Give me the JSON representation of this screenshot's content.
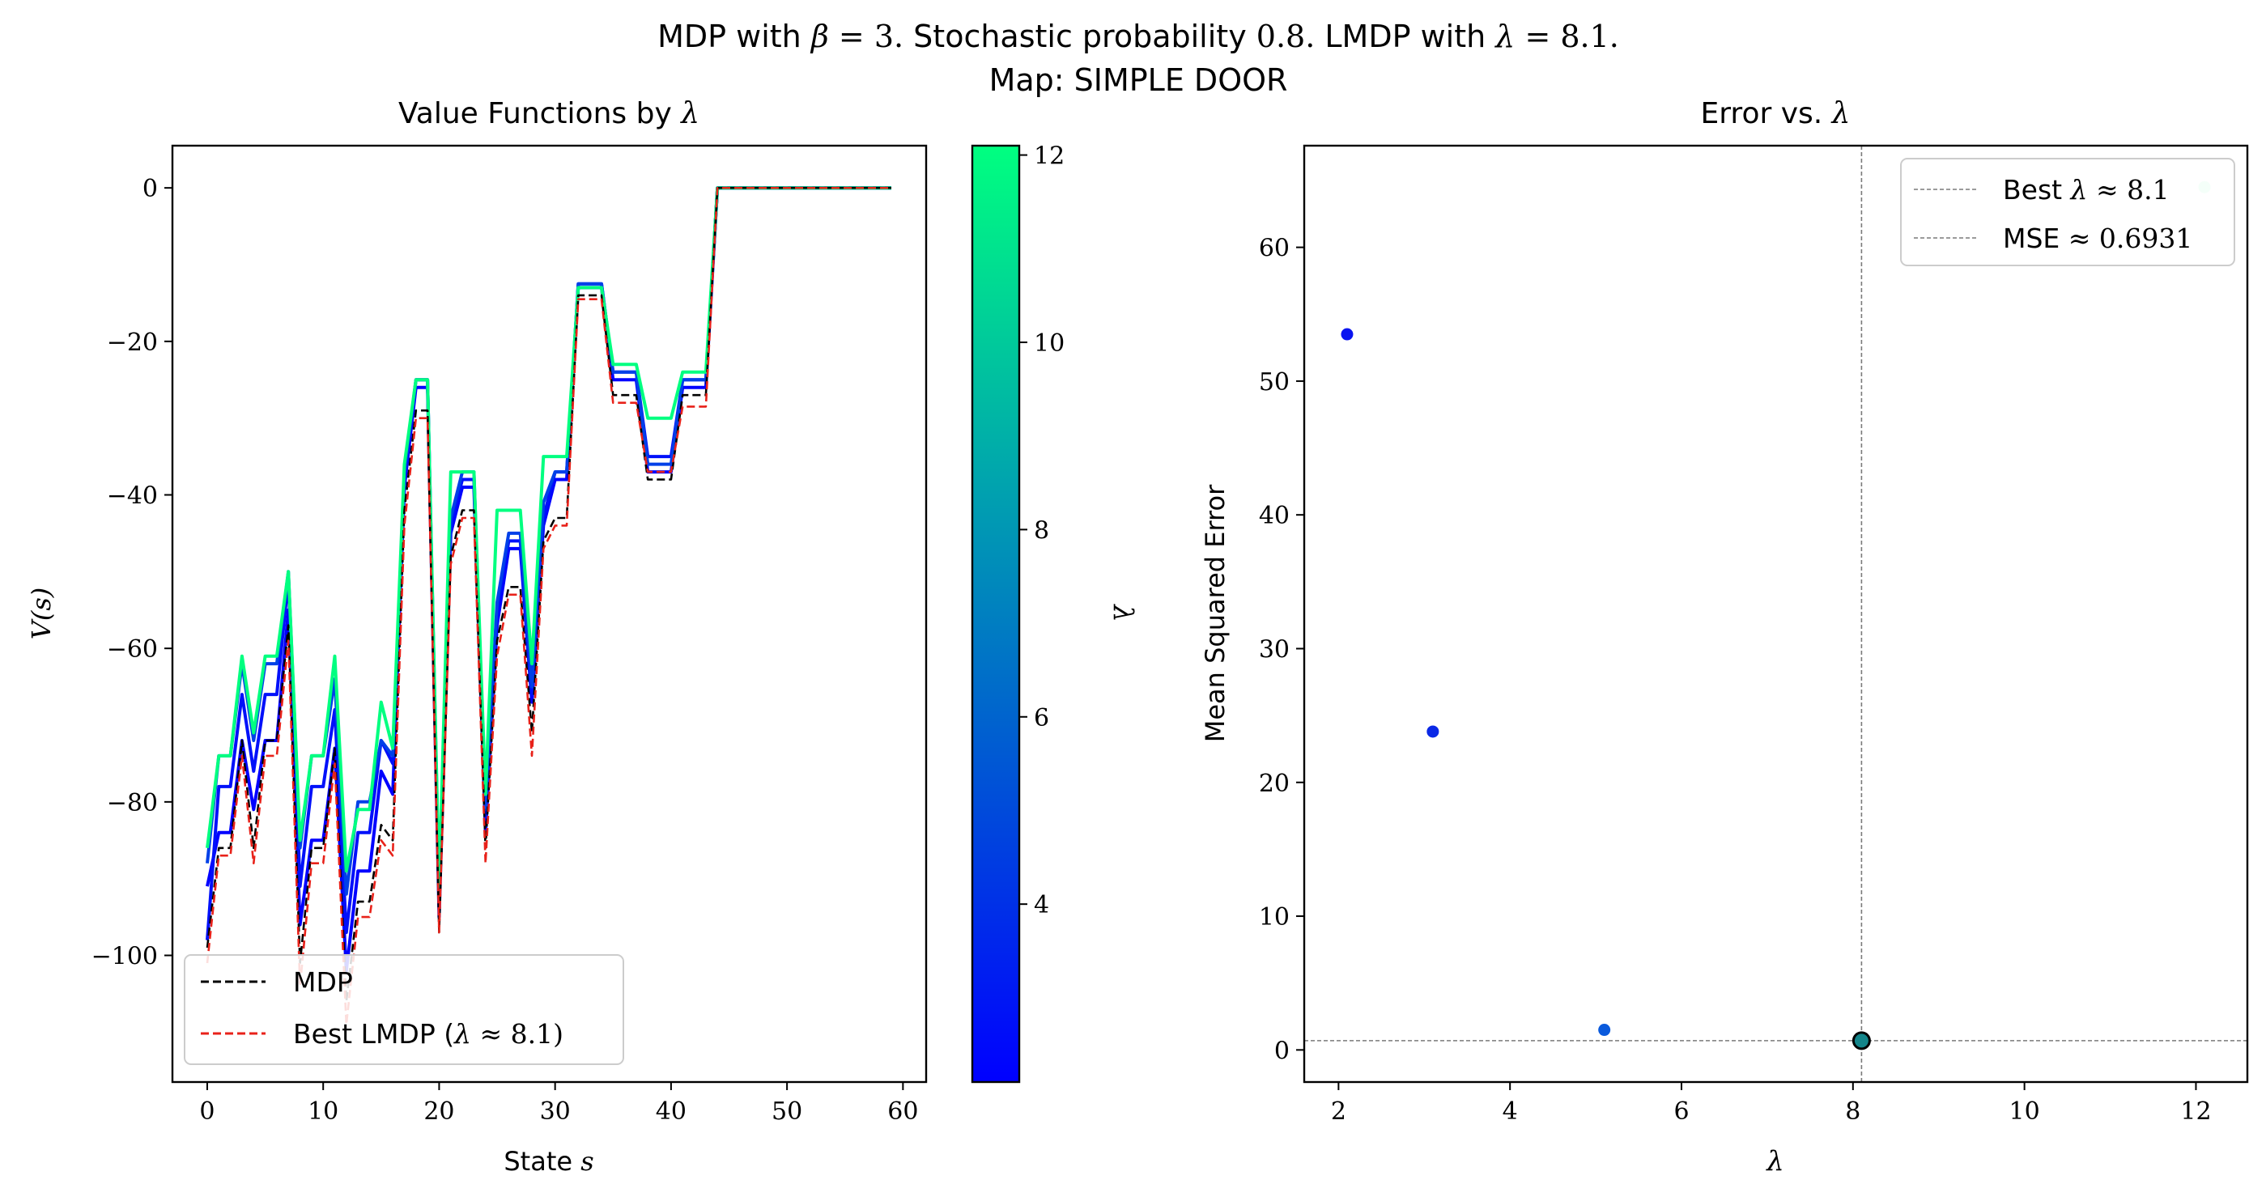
{
  "figure": {
    "title_line1_prefix": "MDP with ",
    "title_beta_sym": "β",
    "title_beta_eq": " = 3. ",
    "title_line1_mid": "Stochastic probability ",
    "title_prob": "0.8. ",
    "title_line1_lmdp": "LMDP with ",
    "title_lambda_sym": "λ",
    "title_lambda_eq": " = 8.1.",
    "title_line2": "Map: SIMPLE DOOR"
  },
  "chart_data": [
    {
      "type": "line",
      "title_prefix": "Value Functions by ",
      "title_symbol": "λ",
      "xlabel_prefix": "State ",
      "xlabel_symbol": "s",
      "ylabel": "V(s)",
      "xlim": [
        -3,
        62
      ],
      "ylim": [
        -116.5,
        5.5
      ],
      "xticks": [
        0,
        10,
        20,
        30,
        40,
        50,
        60
      ],
      "yticks": [
        0,
        -20,
        -40,
        -60,
        -80,
        -100
      ],
      "ytick_labels": [
        "0",
        "−20",
        "−40",
        "−60",
        "−80",
        "−100"
      ],
      "legend_position": "lower left",
      "legend": [
        {
          "label": "MDP",
          "color": "#000000",
          "dash": true
        },
        {
          "label_prefix": "Best LMDP (",
          "label_symbol": "λ",
          "label_suffix": " ≈ 8.1)",
          "color": "#e8221a",
          "dash": true
        }
      ],
      "colorbar": {
        "label": "λ",
        "range": [
          2.1,
          12.1
        ],
        "ticks": [
          4,
          6,
          8,
          10,
          12
        ],
        "color_low": "#0000ff",
        "color_high": "#00ff80"
      },
      "x": [
        0,
        1,
        2,
        3,
        4,
        5,
        6,
        7,
        8,
        9,
        10,
        11,
        12,
        13,
        14,
        15,
        16,
        17,
        18,
        19,
        20,
        21,
        22,
        23,
        24,
        25,
        26,
        27,
        28,
        29,
        30,
        31,
        32,
        33,
        34,
        35,
        36,
        37,
        38,
        39,
        40,
        41,
        42,
        43,
        44,
        45,
        46,
        47,
        48,
        49,
        50,
        51,
        52,
        53,
        54,
        55,
        56,
        57,
        58,
        59
      ],
      "series": [
        {
          "lambda": 2.1,
          "color": "#0000ff",
          "dash": false,
          "values": [
            -91,
            -84,
            -84,
            -72,
            -81,
            -72,
            -72,
            -55,
            -96,
            -85,
            -85,
            -73,
            -102,
            -89,
            -89,
            -76,
            -79,
            -39,
            -26,
            -26,
            -95,
            -45,
            -39,
            -39,
            -84,
            -57,
            -47,
            -47,
            -67,
            -44,
            -38,
            -38,
            -13,
            -13,
            -13,
            -25,
            -25,
            -25,
            -37,
            -37,
            -37,
            -26,
            -26,
            -26,
            0,
            0,
            0,
            0,
            0,
            0,
            0,
            0,
            0,
            0,
            0,
            0,
            0,
            0,
            0,
            0
          ]
        },
        {
          "lambda": 3.1,
          "color": "#0010fa",
          "dash": false,
          "values": [
            -98,
            -78,
            -78,
            -66,
            -76,
            -66,
            -66,
            -51,
            -91,
            -78,
            -78,
            -68,
            -97,
            -84,
            -84,
            -72,
            -75,
            -38,
            -25,
            -25,
            -93,
            -44,
            -38,
            -38,
            -82,
            -55,
            -46,
            -46,
            -66,
            -43,
            -37,
            -37,
            -12.5,
            -12.5,
            -12.5,
            -24,
            -24,
            -24,
            -35,
            -35,
            -35,
            -25,
            -25,
            -25,
            0,
            0,
            0,
            0,
            0,
            0,
            0,
            0,
            0,
            0,
            0,
            0,
            0,
            0,
            0,
            0
          ]
        },
        {
          "lambda": 5.1,
          "color": "#0040e8",
          "dash": false,
          "values": [
            -88,
            -74,
            -74,
            -62,
            -72,
            -62,
            -62,
            -50,
            -86,
            -74,
            -74,
            -64,
            -92,
            -80,
            -80,
            -72,
            -74,
            -37,
            -25,
            -25,
            -92,
            -43,
            -37,
            -37,
            -81,
            -54,
            -45,
            -45,
            -65,
            -41,
            -37,
            -37,
            -12.5,
            -12.5,
            -12.5,
            -24,
            -24,
            -24,
            -36,
            -36,
            -36,
            -25,
            -25,
            -25,
            0,
            0,
            0,
            0,
            0,
            0,
            0,
            0,
            0,
            0,
            0,
            0,
            0,
            0,
            0,
            0
          ]
        },
        {
          "lambda": 12.1,
          "color": "#00ff80",
          "dash": false,
          "values": [
            -86,
            -74,
            -74,
            -61,
            -71,
            -61,
            -61,
            -50,
            -85,
            -74,
            -74,
            -61,
            -89,
            -81,
            -81,
            -67,
            -73,
            -36,
            -25,
            -25,
            -91,
            -37,
            -37,
            -37,
            -79,
            -42,
            -42,
            -42,
            -62,
            -35,
            -35,
            -35,
            -13,
            -13,
            -13,
            -23,
            -23,
            -23,
            -30,
            -30,
            -30,
            -24,
            -24,
            -24,
            0,
            0,
            0,
            0,
            0,
            0,
            0,
            0,
            0,
            0,
            0,
            0,
            0,
            0,
            0,
            0
          ]
        },
        {
          "name": "MDP",
          "color": "#000000",
          "dash": true,
          "values": [
            -99,
            -86,
            -86,
            -72,
            -86,
            -72,
            -72,
            -57,
            -101,
            -86,
            -86,
            -73,
            -106,
            -93,
            -93,
            -83,
            -85,
            -42,
            -29,
            -29,
            -97,
            -48,
            -42,
            -42,
            -86,
            -59,
            -52,
            -52,
            -71,
            -46,
            -43,
            -43,
            -14,
            -14,
            -14,
            -27,
            -27,
            -27,
            -38,
            -38,
            -38,
            -27,
            -27,
            -27,
            0,
            0,
            0,
            0,
            0,
            0,
            0,
            0,
            0,
            0,
            0,
            0,
            0,
            0,
            0,
            0
          ]
        },
        {
          "name": "Best LMDP",
          "color": "#e8221a",
          "dash": true,
          "values": [
            -101,
            -87,
            -87,
            -74,
            -88,
            -74,
            -74,
            -59,
            -104,
            -88,
            -88,
            -75,
            -109,
            -95,
            -95,
            -85,
            -87,
            -44,
            -30,
            -30,
            -97,
            -49,
            -43,
            -43,
            -88,
            -61,
            -53,
            -53,
            -74,
            -47,
            -44,
            -44,
            -14.5,
            -14.5,
            -14.5,
            -28,
            -28,
            -28,
            -37,
            -37,
            -37,
            -28.5,
            -28.5,
            -28.5,
            0,
            0,
            0,
            0,
            0,
            0,
            0,
            0,
            0,
            0,
            0,
            0,
            0,
            0,
            0,
            0
          ]
        }
      ]
    },
    {
      "type": "scatter",
      "title_prefix": "Error vs. ",
      "title_symbol": "λ",
      "xlabel": "λ",
      "ylabel": "Mean Squared Error",
      "xlim": [
        1.6,
        12.6
      ],
      "ylim": [
        -2.4,
        67.6
      ],
      "xticks": [
        2,
        4,
        6,
        8,
        10,
        12
      ],
      "yticks": [
        0,
        10,
        20,
        30,
        40,
        50,
        60
      ],
      "legend_position": "upper right",
      "legend": [
        {
          "label_prefix": "Best ",
          "label_symbol": "λ",
          "label_suffix": " ≈ 8.1"
        },
        {
          "label_prefix": "MSE ",
          "label_symbol": "",
          "label_suffix": "≈ 0.6931"
        }
      ],
      "points": [
        {
          "x": 2.1,
          "y": 53.5,
          "color": "#0a14f0"
        },
        {
          "x": 3.1,
          "y": 23.8,
          "color": "#0a28e6"
        },
        {
          "x": 5.1,
          "y": 1.5,
          "color": "#0a5adc"
        },
        {
          "x": 12.1,
          "y": 64.5,
          "color": "#b4ffd7"
        }
      ],
      "best": {
        "x": 8.1,
        "y": 0.6931,
        "color": "#13858a"
      },
      "ref_lines": {
        "vertical_x": 8.1,
        "horizontal_y": 0.6931,
        "color": "#7a7a7a"
      }
    }
  ]
}
